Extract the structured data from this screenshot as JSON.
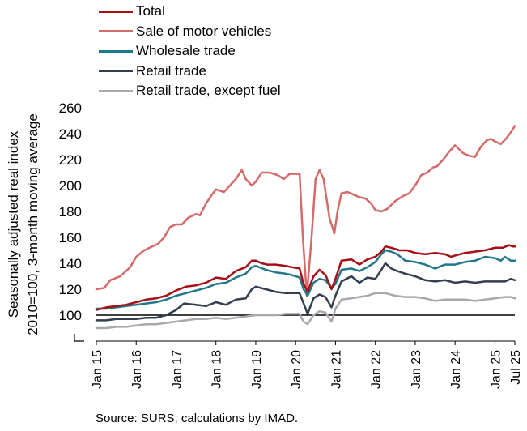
{
  "chart_data": {
    "type": "line",
    "ylabel": [
      "Seasonally adjusted real index",
      "2010=100, 3-month moving average"
    ],
    "ylim": [
      80,
      260
    ],
    "yticks": [
      100,
      120,
      140,
      160,
      180,
      200,
      220,
      240,
      260
    ],
    "xlim": [
      2015.0,
      2025.5
    ],
    "xticks": [
      {
        "label": "Jan 15",
        "x": 2015.0
      },
      {
        "label": "Jan 16",
        "x": 2016.0
      },
      {
        "label": "Jan 17",
        "x": 2017.0
      },
      {
        "label": "Jan 18",
        "x": 2018.0
      },
      {
        "label": "Jan 19",
        "x": 2019.0
      },
      {
        "label": "Jan 20",
        "x": 2020.0
      },
      {
        "label": "Jan 21",
        "x": 2021.0
      },
      {
        "label": "Jan 22",
        "x": 2022.0
      },
      {
        "label": "Jan 23",
        "x": 2023.0
      },
      {
        "label": "Jan 24",
        "x": 2024.0
      },
      {
        "label": "Jan 25",
        "x": 2025.0
      },
      {
        "label": "Jul 25",
        "x": 2025.5
      }
    ],
    "reference_line": 100,
    "grid": false,
    "legend_position": "top-left",
    "series": [
      {
        "name": "Total",
        "color": "#a50f15",
        "width": 2.5,
        "points": [
          [
            2015.0,
            104
          ],
          [
            2015.25,
            106
          ],
          [
            2015.5,
            107
          ],
          [
            2015.75,
            108
          ],
          [
            2016.0,
            110
          ],
          [
            2016.25,
            112
          ],
          [
            2016.5,
            113
          ],
          [
            2016.75,
            115
          ],
          [
            2017.0,
            119
          ],
          [
            2017.25,
            122
          ],
          [
            2017.5,
            123
          ],
          [
            2017.75,
            125
          ],
          [
            2018.0,
            129
          ],
          [
            2018.25,
            128
          ],
          [
            2018.5,
            134
          ],
          [
            2018.75,
            137
          ],
          [
            2018.9,
            142
          ],
          [
            2019.0,
            142
          ],
          [
            2019.15,
            140
          ],
          [
            2019.3,
            139
          ],
          [
            2019.5,
            139
          ],
          [
            2019.75,
            138
          ],
          [
            2019.9,
            137
          ],
          [
            2020.1,
            136
          ],
          [
            2020.2,
            124
          ],
          [
            2020.3,
            118
          ],
          [
            2020.45,
            130
          ],
          [
            2020.6,
            135
          ],
          [
            2020.75,
            131
          ],
          [
            2020.9,
            120
          ],
          [
            2021.0,
            128
          ],
          [
            2021.15,
            142
          ],
          [
            2021.4,
            143
          ],
          [
            2021.6,
            139
          ],
          [
            2021.8,
            143
          ],
          [
            2022.0,
            145
          ],
          [
            2022.15,
            149
          ],
          [
            2022.25,
            153
          ],
          [
            2022.4,
            152
          ],
          [
            2022.6,
            150
          ],
          [
            2022.8,
            150
          ],
          [
            2023.0,
            148
          ],
          [
            2023.25,
            147
          ],
          [
            2023.5,
            148
          ],
          [
            2023.75,
            147
          ],
          [
            2023.9,
            145
          ],
          [
            2024.0,
            146
          ],
          [
            2024.25,
            148
          ],
          [
            2024.5,
            149
          ],
          [
            2024.75,
            150
          ],
          [
            2025.0,
            152
          ],
          [
            2025.2,
            152
          ],
          [
            2025.35,
            154
          ],
          [
            2025.45,
            153
          ],
          [
            2025.5,
            153
          ]
        ]
      },
      {
        "name": "Sale of motor vehicles",
        "color": "#d46a6a",
        "width": 2.5,
        "points": [
          [
            2015.0,
            120
          ],
          [
            2015.2,
            121
          ],
          [
            2015.35,
            127
          ],
          [
            2015.6,
            130
          ],
          [
            2015.85,
            137
          ],
          [
            2016.0,
            145
          ],
          [
            2016.2,
            150
          ],
          [
            2016.4,
            153
          ],
          [
            2016.55,
            155
          ],
          [
            2016.7,
            160
          ],
          [
            2016.85,
            168
          ],
          [
            2017.0,
            170
          ],
          [
            2017.15,
            170
          ],
          [
            2017.3,
            175
          ],
          [
            2017.5,
            178
          ],
          [
            2017.6,
            177
          ],
          [
            2017.75,
            186
          ],
          [
            2017.9,
            193
          ],
          [
            2018.0,
            197
          ],
          [
            2018.2,
            195
          ],
          [
            2018.35,
            200
          ],
          [
            2018.5,
            205
          ],
          [
            2018.65,
            212
          ],
          [
            2018.75,
            205
          ],
          [
            2018.9,
            200
          ],
          [
            2019.0,
            203
          ],
          [
            2019.15,
            210
          ],
          [
            2019.35,
            210
          ],
          [
            2019.55,
            208
          ],
          [
            2019.7,
            205
          ],
          [
            2019.85,
            209
          ],
          [
            2020.0,
            209
          ],
          [
            2020.1,
            209
          ],
          [
            2020.18,
            160
          ],
          [
            2020.28,
            115
          ],
          [
            2020.4,
            160
          ],
          [
            2020.5,
            205
          ],
          [
            2020.6,
            212
          ],
          [
            2020.7,
            205
          ],
          [
            2020.85,
            175
          ],
          [
            2020.97,
            163
          ],
          [
            2021.05,
            180
          ],
          [
            2021.15,
            194
          ],
          [
            2021.3,
            195
          ],
          [
            2021.45,
            193
          ],
          [
            2021.6,
            191
          ],
          [
            2021.75,
            190
          ],
          [
            2021.9,
            186
          ],
          [
            2022.0,
            181
          ],
          [
            2022.15,
            180
          ],
          [
            2022.3,
            182
          ],
          [
            2022.5,
            188
          ],
          [
            2022.7,
            192
          ],
          [
            2022.85,
            194
          ],
          [
            2023.0,
            200
          ],
          [
            2023.15,
            208
          ],
          [
            2023.3,
            210
          ],
          [
            2023.45,
            214
          ],
          [
            2023.55,
            215
          ],
          [
            2023.7,
            220
          ],
          [
            2023.85,
            226
          ],
          [
            2024.0,
            231
          ],
          [
            2024.2,
            225
          ],
          [
            2024.35,
            223
          ],
          [
            2024.5,
            222
          ],
          [
            2024.65,
            230
          ],
          [
            2024.8,
            235
          ],
          [
            2024.9,
            236
          ],
          [
            2025.0,
            234
          ],
          [
            2025.15,
            232
          ],
          [
            2025.3,
            237
          ],
          [
            2025.4,
            241
          ],
          [
            2025.5,
            246
          ]
        ]
      },
      {
        "name": "Wholesale trade",
        "color": "#21788a",
        "width": 2.5,
        "points": [
          [
            2015.0,
            105
          ],
          [
            2015.25,
            105
          ],
          [
            2015.5,
            106
          ],
          [
            2015.75,
            107
          ],
          [
            2016.0,
            108
          ],
          [
            2016.25,
            109
          ],
          [
            2016.5,
            110
          ],
          [
            2016.75,
            112
          ],
          [
            2017.0,
            115
          ],
          [
            2017.25,
            117
          ],
          [
            2017.5,
            119
          ],
          [
            2017.75,
            121
          ],
          [
            2018.0,
            124
          ],
          [
            2018.25,
            125
          ],
          [
            2018.5,
            129
          ],
          [
            2018.75,
            132
          ],
          [
            2018.9,
            137
          ],
          [
            2019.0,
            138
          ],
          [
            2019.25,
            135
          ],
          [
            2019.5,
            133
          ],
          [
            2019.75,
            132
          ],
          [
            2019.9,
            131
          ],
          [
            2020.1,
            129
          ],
          [
            2020.2,
            120
          ],
          [
            2020.3,
            115
          ],
          [
            2020.45,
            125
          ],
          [
            2020.6,
            128
          ],
          [
            2020.75,
            127
          ],
          [
            2020.9,
            121
          ],
          [
            2021.0,
            124
          ],
          [
            2021.15,
            135
          ],
          [
            2021.4,
            136
          ],
          [
            2021.6,
            134
          ],
          [
            2021.8,
            137
          ],
          [
            2022.0,
            141
          ],
          [
            2022.15,
            147
          ],
          [
            2022.25,
            150
          ],
          [
            2022.4,
            149
          ],
          [
            2022.55,
            147
          ],
          [
            2022.75,
            142
          ],
          [
            2023.0,
            141
          ],
          [
            2023.25,
            139
          ],
          [
            2023.5,
            136
          ],
          [
            2023.75,
            139
          ],
          [
            2024.0,
            139
          ],
          [
            2024.25,
            141
          ],
          [
            2024.5,
            142
          ],
          [
            2024.75,
            145
          ],
          [
            2025.0,
            144
          ],
          [
            2025.15,
            142
          ],
          [
            2025.25,
            145
          ],
          [
            2025.4,
            142
          ],
          [
            2025.5,
            142
          ]
        ]
      },
      {
        "name": "Retail trade",
        "color": "#333f50",
        "width": 2.5,
        "points": [
          [
            2015.0,
            96
          ],
          [
            2015.25,
            96
          ],
          [
            2015.5,
            97
          ],
          [
            2015.75,
            97
          ],
          [
            2016.0,
            97
          ],
          [
            2016.25,
            98
          ],
          [
            2016.5,
            98
          ],
          [
            2016.75,
            100
          ],
          [
            2017.0,
            104
          ],
          [
            2017.2,
            109
          ],
          [
            2017.5,
            108
          ],
          [
            2017.75,
            107
          ],
          [
            2018.0,
            110
          ],
          [
            2018.25,
            108
          ],
          [
            2018.5,
            112
          ],
          [
            2018.75,
            113
          ],
          [
            2018.9,
            120
          ],
          [
            2019.0,
            122
          ],
          [
            2019.25,
            120
          ],
          [
            2019.5,
            118
          ],
          [
            2019.75,
            117
          ],
          [
            2019.9,
            117
          ],
          [
            2020.1,
            117
          ],
          [
            2020.2,
            109
          ],
          [
            2020.3,
            101
          ],
          [
            2020.45,
            113
          ],
          [
            2020.6,
            116
          ],
          [
            2020.75,
            114
          ],
          [
            2020.9,
            106
          ],
          [
            2021.0,
            115
          ],
          [
            2021.15,
            126
          ],
          [
            2021.4,
            130
          ],
          [
            2021.6,
            125
          ],
          [
            2021.8,
            129
          ],
          [
            2022.0,
            128
          ],
          [
            2022.15,
            135
          ],
          [
            2022.25,
            140
          ],
          [
            2022.4,
            136
          ],
          [
            2022.55,
            134
          ],
          [
            2022.75,
            132
          ],
          [
            2023.0,
            130
          ],
          [
            2023.25,
            127
          ],
          [
            2023.5,
            126
          ],
          [
            2023.75,
            127
          ],
          [
            2024.0,
            125
          ],
          [
            2024.25,
            126
          ],
          [
            2024.5,
            125
          ],
          [
            2024.75,
            126
          ],
          [
            2025.0,
            126
          ],
          [
            2025.25,
            126
          ],
          [
            2025.4,
            128
          ],
          [
            2025.5,
            127
          ]
        ]
      },
      {
        "name": "Retail trade, except fuel",
        "color": "#a6a9ae",
        "width": 2.5,
        "points": [
          [
            2015.0,
            90
          ],
          [
            2015.25,
            90
          ],
          [
            2015.5,
            91
          ],
          [
            2015.75,
            91
          ],
          [
            2016.0,
            92
          ],
          [
            2016.25,
            93
          ],
          [
            2016.5,
            93
          ],
          [
            2016.75,
            94
          ],
          [
            2017.0,
            95
          ],
          [
            2017.25,
            96
          ],
          [
            2017.5,
            97
          ],
          [
            2017.75,
            97
          ],
          [
            2018.0,
            98
          ],
          [
            2018.25,
            97
          ],
          [
            2018.5,
            98
          ],
          [
            2018.75,
            99
          ],
          [
            2019.0,
            100
          ],
          [
            2019.25,
            100
          ],
          [
            2019.5,
            100
          ],
          [
            2019.75,
            101
          ],
          [
            2020.0,
            101
          ],
          [
            2020.1,
            101
          ],
          [
            2020.2,
            95
          ],
          [
            2020.3,
            93
          ],
          [
            2020.45,
            100
          ],
          [
            2020.6,
            103
          ],
          [
            2020.75,
            102
          ],
          [
            2020.9,
            95
          ],
          [
            2021.0,
            105
          ],
          [
            2021.15,
            112
          ],
          [
            2021.4,
            113
          ],
          [
            2021.6,
            114
          ],
          [
            2021.8,
            115
          ],
          [
            2022.0,
            117
          ],
          [
            2022.25,
            117
          ],
          [
            2022.5,
            115
          ],
          [
            2022.75,
            114
          ],
          [
            2023.0,
            114
          ],
          [
            2023.25,
            113
          ],
          [
            2023.5,
            111
          ],
          [
            2023.75,
            112
          ],
          [
            2024.0,
            112
          ],
          [
            2024.25,
            112
          ],
          [
            2024.5,
            111
          ],
          [
            2024.75,
            112
          ],
          [
            2025.0,
            113
          ],
          [
            2025.25,
            114
          ],
          [
            2025.4,
            114
          ],
          [
            2025.5,
            113
          ]
        ]
      }
    ],
    "source": "Source: SURS; calculations by IMAD."
  }
}
